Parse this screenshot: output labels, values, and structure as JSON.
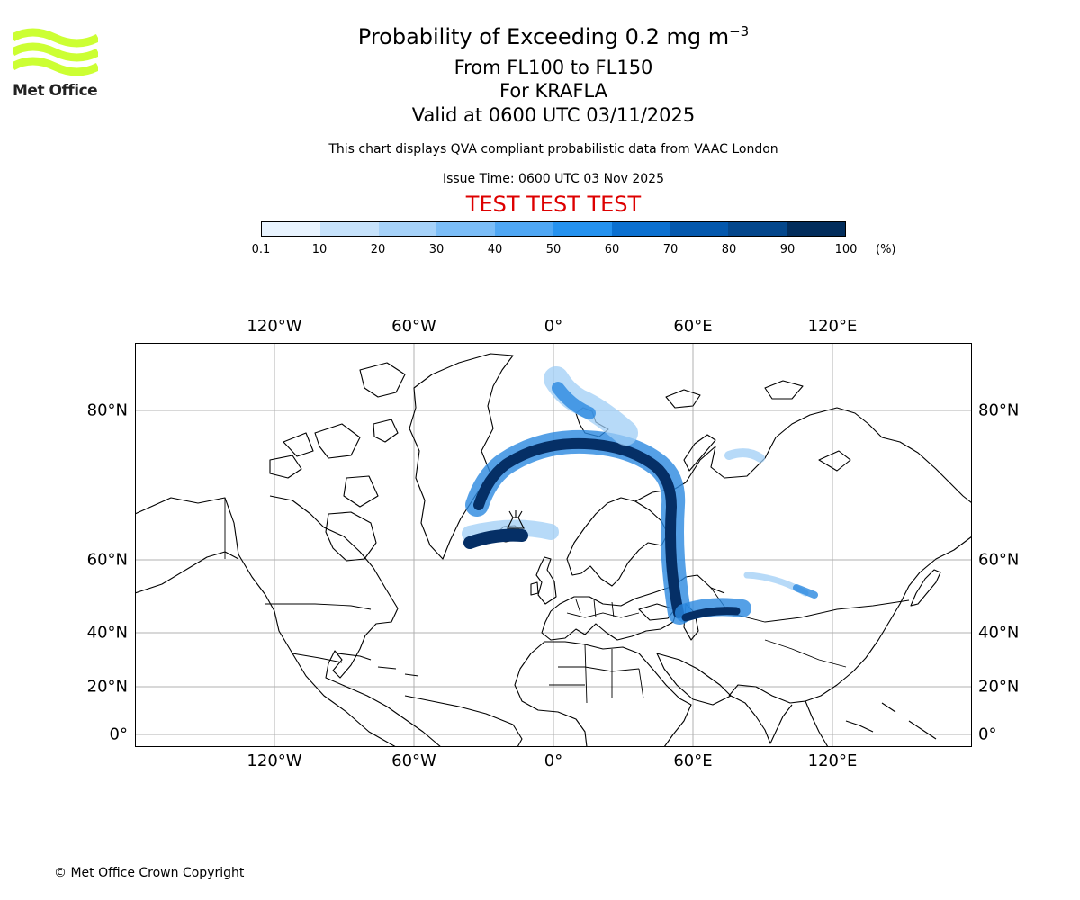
{
  "header": {
    "title_main": "Probability of Exceeding 0.2 mg m",
    "title_exponent": "−3",
    "level_range": "From FL100 to FL150",
    "volcano": "For KRAFLA",
    "valid_time": "Valid at 0600 UTC 03/11/2025",
    "note": "This chart displays QVA compliant probabilistic data from VAAC London",
    "issue_time": "Issue Time: 0600 UTC 03 Nov 2025",
    "test_banner": "TEST TEST TEST"
  },
  "logo": {
    "text": "Met Office",
    "color": "#ccff33"
  },
  "colorbar": {
    "ticks": [
      "0.1",
      "10",
      "20",
      "30",
      "40",
      "50",
      "60",
      "70",
      "80",
      "90",
      "100"
    ],
    "unit": "(%)",
    "colors": [
      "#e8f3fe",
      "#c6e2fb",
      "#a6d2f9",
      "#7bbdf7",
      "#4fa7f4",
      "#2592ef",
      "#0b70d0",
      "#0458ad",
      "#04478c",
      "#022d5c"
    ]
  },
  "map": {
    "lon_labels": [
      "120°W",
      "60°W",
      "0°",
      "60°E",
      "120°E"
    ],
    "lat_labels": [
      "80°N",
      "60°N",
      "40°N",
      "20°N",
      "0°"
    ],
    "ash_color_high": "#052f66",
    "ash_color_mid": "#2a88e0",
    "ash_color_low": "#9fcef6"
  },
  "footer": {
    "copyright": "© Met Office Crown Copyright"
  }
}
